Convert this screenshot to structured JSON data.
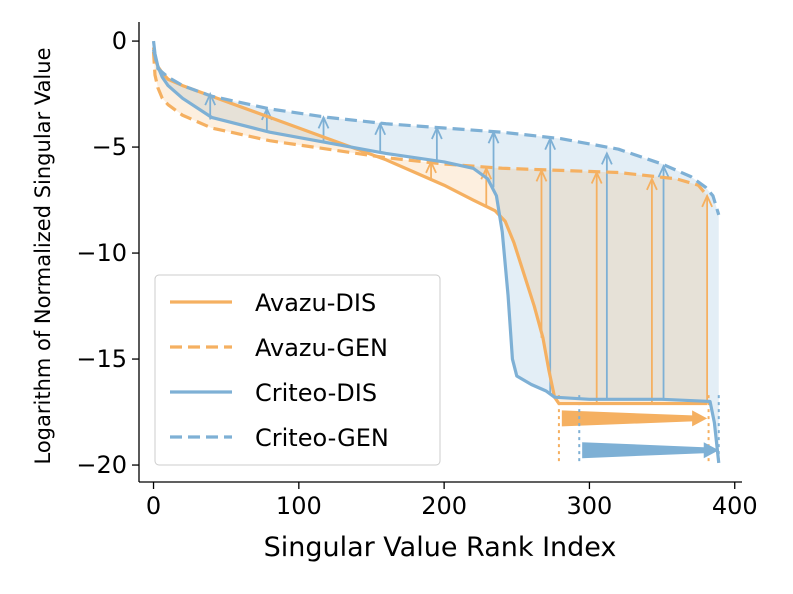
{
  "chart_data": {
    "type": "line",
    "title": "",
    "xlabel": "Singular Value Rank Index",
    "ylabel": "Logarithm of Normalized Singular Value",
    "xlim": [
      -10,
      405
    ],
    "ylim": [
      -20.8,
      0.9
    ],
    "x_ticks": [
      0,
      100,
      200,
      300,
      400
    ],
    "x_tick_labels": [
      "0",
      "100",
      "200",
      "300",
      "400"
    ],
    "y_ticks": [
      0,
      -5,
      -10,
      -15,
      -20
    ],
    "y_tick_labels": [
      "0",
      "−5",
      "−10",
      "−15",
      "−20"
    ],
    "grid": false,
    "legend_position": "lower-left",
    "colors": {
      "avazu": "#f5b061",
      "criteo": "#7eb0d5"
    },
    "series": [
      {
        "name": "Avazu-DIS",
        "style": "solid",
        "color": "#f5b061",
        "x": [
          0,
          1,
          3,
          6,
          10,
          20,
          40,
          80,
          120,
          160,
          180,
          200,
          220,
          235,
          242,
          248,
          255,
          262,
          268,
          272,
          276,
          279,
          283,
          300,
          340,
          381
        ],
        "y": [
          -0.3,
          -0.8,
          -1.2,
          -1.5,
          -1.8,
          -2.1,
          -2.6,
          -3.6,
          -4.6,
          -5.6,
          -6.2,
          -6.8,
          -7.5,
          -8.0,
          -8.5,
          -9.5,
          -11.0,
          -12.5,
          -14.0,
          -15.5,
          -16.8,
          -17.1,
          -17.1,
          -17.1,
          -17.1,
          -17.1
        ]
      },
      {
        "name": "Avazu-GEN",
        "style": "dashed",
        "color": "#f5b061",
        "x": [
          0,
          1,
          3,
          6,
          10,
          20,
          40,
          80,
          120,
          160,
          200,
          240,
          280,
          320,
          360,
          375,
          381
        ],
        "y": [
          -0.5,
          -1.6,
          -2.2,
          -2.7,
          -3.0,
          -3.5,
          -4.1,
          -4.7,
          -5.1,
          -5.5,
          -5.8,
          -6.0,
          -6.1,
          -6.2,
          -6.5,
          -6.8,
          -7.3
        ]
      },
      {
        "name": "Criteo-DIS",
        "style": "solid",
        "color": "#7eb0d5",
        "x": [
          0,
          1,
          3,
          6,
          10,
          20,
          40,
          80,
          120,
          160,
          200,
          220,
          230,
          236,
          240,
          244,
          247,
          250,
          260,
          270,
          276,
          300,
          350,
          383,
          386,
          389
        ],
        "y": [
          0,
          -0.6,
          -1.2,
          -1.7,
          -2.1,
          -2.7,
          -3.6,
          -4.3,
          -4.8,
          -5.3,
          -5.7,
          -6.0,
          -6.5,
          -7.3,
          -9.0,
          -12.0,
          -15.0,
          -15.8,
          -16.2,
          -16.5,
          -16.8,
          -16.9,
          -16.9,
          -17.0,
          -18.0,
          -19.9
        ]
      },
      {
        "name": "Criteo-GEN",
        "style": "dashed",
        "color": "#7eb0d5",
        "x": [
          0,
          3,
          10,
          20,
          40,
          80,
          120,
          160,
          200,
          240,
          280,
          320,
          350,
          370,
          380,
          385,
          389
        ],
        "y": [
          -0.4,
          -1.3,
          -1.7,
          -2.1,
          -2.6,
          -3.2,
          -3.6,
          -3.9,
          -4.1,
          -4.3,
          -4.6,
          -5.1,
          -5.8,
          -6.4,
          -6.9,
          -7.3,
          -8.2
        ]
      }
    ],
    "annotations": {
      "criteo_up_arrows": [
        {
          "x": 39,
          "from": -3.7,
          "to": -2.5
        },
        {
          "x": 78,
          "from": -4.3,
          "to": -3.2
        },
        {
          "x": 117,
          "from": -4.8,
          "to": -3.6
        },
        {
          "x": 156,
          "from": -5.3,
          "to": -3.9
        },
        {
          "x": 195,
          "from": -5.7,
          "to": -4.1
        },
        {
          "x": 234,
          "from": -6.9,
          "to": -4.3
        },
        {
          "x": 273,
          "from": -16.6,
          "to": -4.6
        },
        {
          "x": 312,
          "from": -16.9,
          "to": -5.3
        },
        {
          "x": 351,
          "from": -16.9,
          "to": -5.9
        }
      ],
      "avazu_up_arrows": [
        {
          "x": 191,
          "from": -6.6,
          "to": -5.7
        },
        {
          "x": 229,
          "from": -7.8,
          "to": -6.0
        },
        {
          "x": 267,
          "from": -14.0,
          "to": -6.1
        },
        {
          "x": 305,
          "from": -17.1,
          "to": -6.2
        },
        {
          "x": 343,
          "from": -17.1,
          "to": -6.5
        },
        {
          "x": 381,
          "from": -17.1,
          "to": -7.3
        }
      ],
      "avazu_right_arrow": {
        "from": 281,
        "to": 381,
        "y": -17.8,
        "guides": [
          279,
          382
        ]
      },
      "criteo_right_arrow": {
        "from": 295,
        "to": 389,
        "y": -19.3,
        "guides": [
          293,
          389
        ]
      }
    }
  }
}
